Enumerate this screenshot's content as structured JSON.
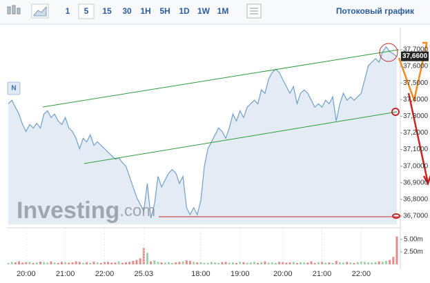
{
  "toolbar": {
    "intervals": [
      "1",
      "5",
      "15",
      "30",
      "1H",
      "5H",
      "1D",
      "1W",
      "1M"
    ],
    "selected": "5",
    "mode_label": "Потоковый график"
  },
  "chart_data": {
    "type": "area",
    "badge": "N",
    "watermark": "Investing",
    "watermark_suffix": ".com",
    "color": "#6f9fcb",
    "fill": "#e3ecf4",
    "categories": [
      null,
      null,
      null,
      null,
      null,
      "20:00",
      null,
      null,
      null,
      null,
      null,
      null,
      null,
      null,
      null,
      null,
      "21:00",
      null,
      null,
      null,
      null,
      null,
      null,
      null,
      null,
      null,
      null,
      "22:00",
      null,
      null,
      null,
      null,
      null,
      null,
      null,
      null,
      null,
      null,
      "25.03",
      null,
      null,
      null,
      null,
      null,
      null,
      null,
      null,
      null,
      null,
      null,
      null,
      null,
      null,
      null,
      "18:00",
      null,
      null,
      null,
      null,
      null,
      null,
      null,
      null,
      null,
      null,
      "19:00",
      null,
      null,
      null,
      null,
      null,
      null,
      null,
      null,
      null,
      null,
      null,
      "20:00",
      null,
      null,
      null,
      null,
      null,
      null,
      null,
      null,
      null,
      null,
      "21:00",
      null,
      null,
      null,
      null,
      null,
      null,
      null,
      null,
      null,
      null,
      "22:00",
      null,
      null,
      null,
      null,
      null,
      null,
      null,
      null,
      null,
      null
    ],
    "values": [
      37.375,
      37.396,
      37.354,
      37.313,
      37.25,
      37.208,
      37.25,
      37.229,
      37.258,
      37.229,
      37.313,
      37.333,
      37.292,
      37.313,
      37.271,
      37.25,
      37.292,
      37.229,
      37.208,
      37.167,
      37.104,
      37.167,
      37.146,
      37.188,
      37.125,
      37.146,
      37.125,
      37.104,
      37.083,
      37.063,
      37.042,
      37.05,
      37.021,
      37,
      36.938,
      36.875,
      36.813,
      36.771,
      36.729,
      36.896,
      36.688,
      36.771,
      36.938,
      36.875,
      36.917,
      36.958,
      36.979,
      36.958,
      36.896,
      36.938,
      36.75,
      36.708,
      36.75,
      36.708,
      36.792,
      37,
      37.104,
      37.146,
      37.188,
      37.229,
      37.208,
      37.167,
      37.229,
      37.313,
      37.271,
      37.333,
      37.292,
      37.354,
      37.375,
      37.396,
      37.375,
      37.458,
      37.438,
      37.521,
      37.563,
      37.583,
      37.563,
      37.521,
      37.479,
      37.438,
      37.479,
      37.375,
      37.438,
      37.458,
      37.438,
      37.396,
      37.354,
      37.375,
      37.354,
      37.396,
      37.375,
      37.417,
      37.271,
      37.375,
      37.438,
      37.396,
      37.417,
      37.396,
      37.417,
      37.438,
      37.521,
      37.604,
      37.625,
      37.646,
      37.625,
      37.688,
      37.717,
      37.688,
      37.675,
      37.658
    ],
    "ylim": [
      36.65,
      37.76
    ],
    "yticks": [
      {
        "value": 37.7,
        "label": "37,7000"
      },
      {
        "value": 37.6,
        "label": "37,6000"
      },
      {
        "value": 37.5,
        "label": "37,5000"
      },
      {
        "value": 37.4,
        "label": "37,4000"
      },
      {
        "value": 37.3,
        "label": "37,3000"
      },
      {
        "value": 37.2,
        "label": "37,2000"
      },
      {
        "value": 37.1,
        "label": "37,1000"
      },
      {
        "value": 37.0,
        "label": "37,0000"
      },
      {
        "value": 36.9,
        "label": "36,9000"
      },
      {
        "value": 36.8,
        "label": "36,8000"
      },
      {
        "value": 36.7,
        "label": "36,7000"
      }
    ],
    "last_price": {
      "value": 37.66,
      "label": "37,6600"
    },
    "volume": {
      "up_color": "#9fd0ac",
      "down_color": "#e58c8a",
      "values": [
        300000,
        500000,
        400000,
        600000,
        350000,
        450000,
        500000,
        300000,
        400000,
        550000,
        450000,
        350000,
        600000,
        400000,
        300000,
        500000,
        450000,
        350000,
        400000,
        600000,
        500000,
        300000,
        450000,
        350000,
        550000,
        400000,
        300000,
        450000,
        500000,
        350000,
        400000,
        600000,
        300000,
        450000,
        500000,
        700000,
        900000,
        1200000,
        3300000,
        2300000,
        600000,
        800000,
        500000,
        400000,
        350000,
        450000,
        300000,
        400000,
        500000,
        600000,
        800000,
        700000,
        500000,
        400000,
        450000,
        300000,
        350000,
        500000,
        400000,
        300000,
        450000,
        500000,
        350000,
        400000,
        300000,
        550000,
        450000,
        350000,
        400000,
        500000,
        300000,
        450000,
        600000,
        350000,
        400000,
        300000,
        500000,
        450000,
        350000,
        400000,
        500000,
        300000,
        450000,
        400000,
        350000,
        600000,
        300000,
        450000,
        500000,
        350000,
        400000,
        300000,
        700000,
        450000,
        350000,
        500000,
        400000,
        300000,
        450000,
        600000,
        500000,
        400000,
        350000,
        450000,
        600000,
        500000,
        700000,
        900000,
        1500000,
        5600000
      ],
      "ylim": [
        0,
        6500000
      ],
      "yticks": [
        {
          "value": 5000000,
          "label": "5.00m"
        },
        {
          "value": 2500000,
          "label": "2.50m"
        }
      ]
    }
  }
}
